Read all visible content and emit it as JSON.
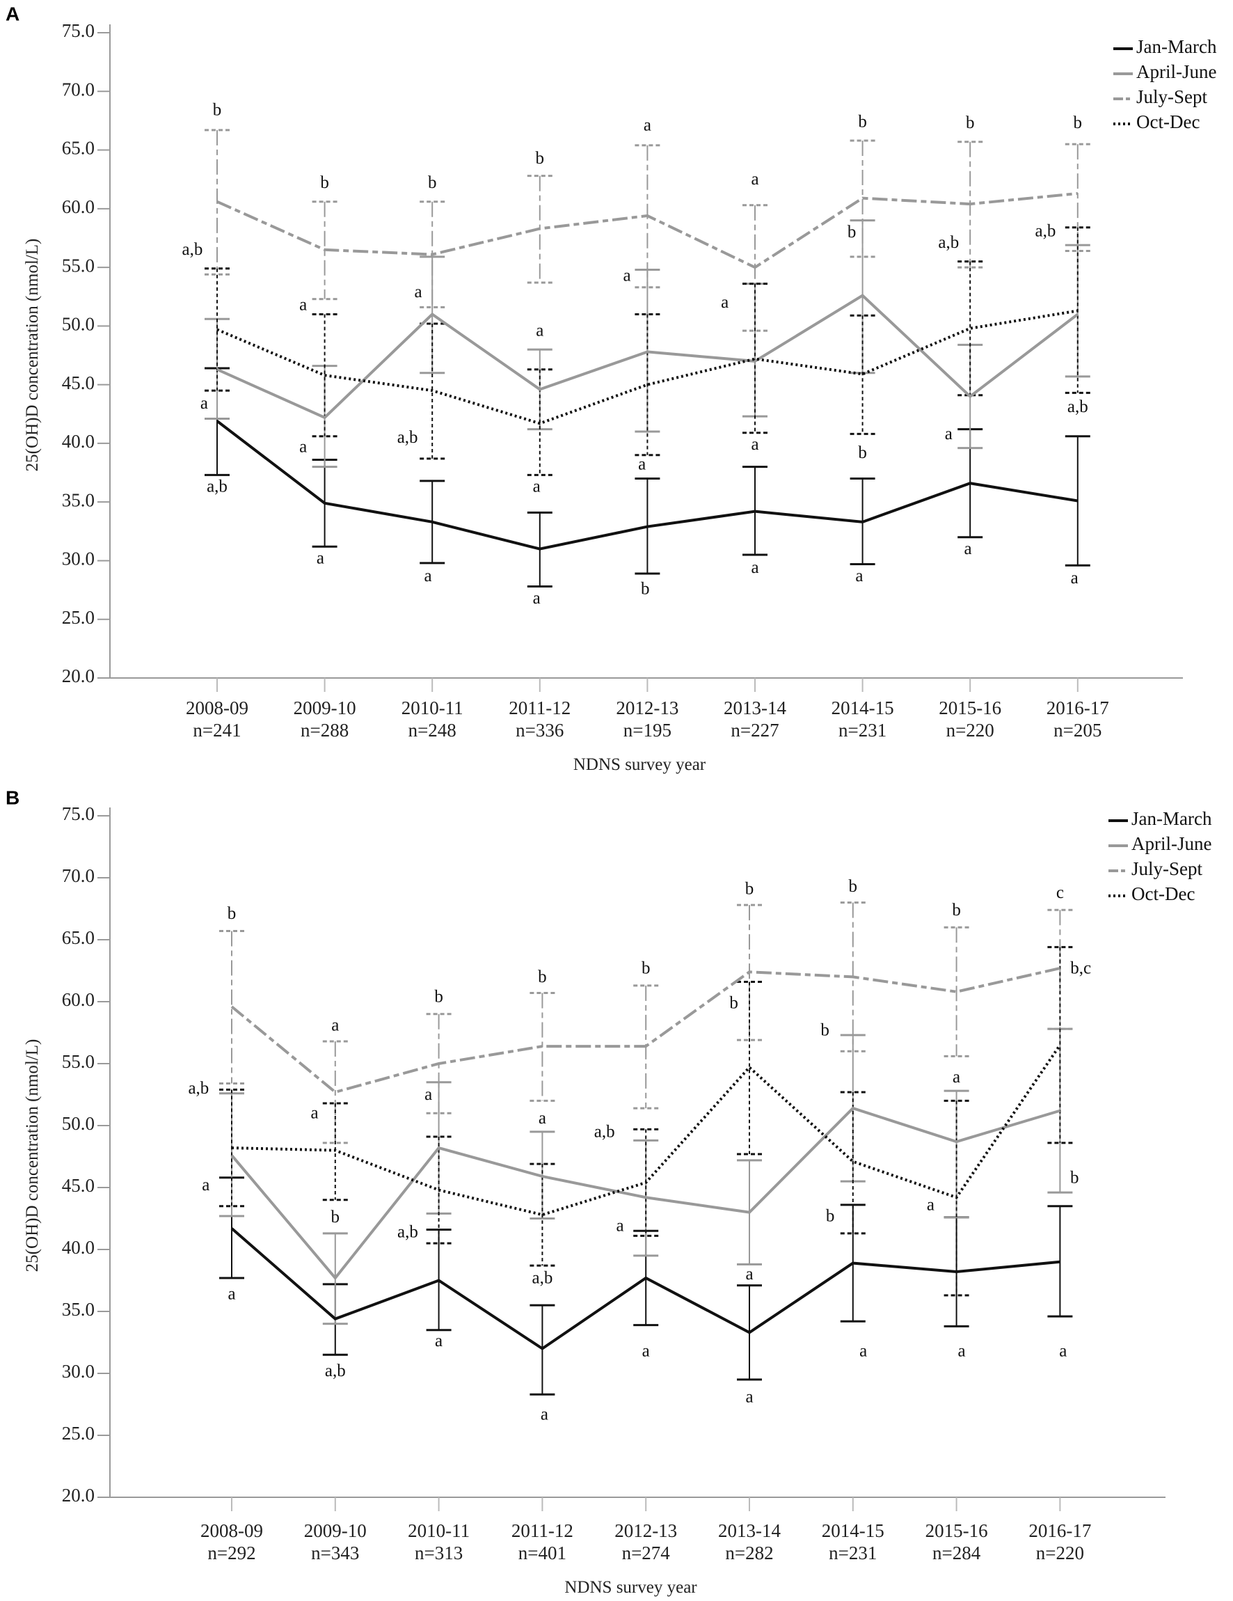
{
  "chart_data": [
    {
      "panel_label": "A",
      "type": "line",
      "xlabel": "NDNS survey year",
      "ylabel": "25(OH)D concentration (nmol/L)",
      "ylim": [
        20,
        75
      ],
      "yticks": [
        "20.0",
        "25.0",
        "30.0",
        "35.0",
        "40.0",
        "45.0",
        "50.0",
        "55.0",
        "60.0",
        "65.0",
        "70.0",
        "75.0"
      ],
      "categories": [
        "2008-09",
        "2009-10",
        "2010-11",
        "2011-12",
        "2012-13",
        "2013-14",
        "2014-15",
        "2015-16",
        "2016-17"
      ],
      "n_labels": [
        "n=241",
        "n=288",
        "n=248",
        "n=336",
        "n=195",
        "n=227",
        "n=231",
        "n=220",
        "n=205"
      ],
      "legend_position": "top-right",
      "series": [
        {
          "name": "Jan-March",
          "color": "#111111",
          "style": "solid",
          "mean": [
            41.9,
            34.9,
            33.3,
            31.0,
            32.9,
            34.2,
            33.3,
            36.6,
            35.1
          ],
          "lower": [
            37.3,
            31.2,
            29.8,
            27.8,
            28.9,
            30.5,
            29.7,
            32.0,
            29.6
          ],
          "upper": [
            46.4,
            38.6,
            36.8,
            34.1,
            37.0,
            38.0,
            37.0,
            41.2,
            40.6
          ]
        },
        {
          "name": "April-June",
          "color": "#999999",
          "style": "solid",
          "mean": [
            46.3,
            42.2,
            51.0,
            44.6,
            47.8,
            47.0,
            52.6,
            44.0,
            51.0
          ],
          "lower": [
            42.1,
            38.0,
            46.0,
            41.2,
            41.0,
            42.3,
            46.0,
            39.6,
            45.7
          ],
          "upper": [
            50.6,
            46.6,
            55.9,
            48.0,
            54.8,
            53.6,
            59.0,
            48.4,
            56.9
          ]
        },
        {
          "name": "July-Sept",
          "color": "#999999",
          "style": "dashdot",
          "mean": [
            60.6,
            56.5,
            56.1,
            58.3,
            59.4,
            55.0,
            60.9,
            60.4,
            61.3
          ],
          "lower": [
            54.4,
            52.3,
            51.6,
            53.7,
            53.3,
            49.6,
            55.9,
            55.0,
            56.4
          ],
          "upper": [
            66.7,
            60.6,
            60.6,
            62.8,
            65.4,
            60.3,
            65.8,
            65.7,
            65.5
          ]
        },
        {
          "name": "Oct-Dec",
          "color": "#111111",
          "style": "dotted",
          "mean": [
            49.7,
            45.8,
            44.5,
            41.7,
            45.0,
            47.2,
            45.9,
            49.8,
            51.3
          ],
          "lower": [
            44.5,
            40.6,
            38.7,
            37.3,
            39.0,
            40.9,
            40.8,
            44.1,
            44.3
          ],
          "upper": [
            54.9,
            51.0,
            50.2,
            46.3,
            51.0,
            53.6,
            50.9,
            55.5,
            58.4
          ]
        }
      ],
      "annotations": [
        {
          "text": "b",
          "x": 0,
          "y": 68.3
        },
        {
          "text": "a,b",
          "x": -0.23,
          "y": 56.4
        },
        {
          "text": "a",
          "x": -0.12,
          "y": 43.3
        },
        {
          "text": "a,b",
          "x": 0,
          "y": 36.2
        },
        {
          "text": "b",
          "x": 1,
          "y": 62.1
        },
        {
          "text": "a",
          "x": 0.8,
          "y": 51.7
        },
        {
          "text": "a",
          "x": 0.8,
          "y": 39.6
        },
        {
          "text": "a",
          "x": 0.96,
          "y": 30.1
        },
        {
          "text": "b",
          "x": 2,
          "y": 62.1
        },
        {
          "text": "a",
          "x": 1.87,
          "y": 52.8
        },
        {
          "text": "a,b",
          "x": 1.77,
          "y": 40.4
        },
        {
          "text": "a",
          "x": 1.96,
          "y": 28.6
        },
        {
          "text": "b",
          "x": 3,
          "y": 64.2
        },
        {
          "text": "a",
          "x": 3,
          "y": 49.5
        },
        {
          "text": "a",
          "x": 2.97,
          "y": 36.2
        },
        {
          "text": "a",
          "x": 2.97,
          "y": 26.7
        },
        {
          "text": "a",
          "x": 4,
          "y": 67.0
        },
        {
          "text": "a",
          "x": 3.81,
          "y": 54.2
        },
        {
          "text": "a",
          "x": 3.95,
          "y": 38.1
        },
        {
          "text": "b",
          "x": 3.98,
          "y": 27.5
        },
        {
          "text": "a",
          "x": 5,
          "y": 62.4
        },
        {
          "text": "a",
          "x": 4.72,
          "y": 51.9
        },
        {
          "text": "a",
          "x": 5,
          "y": 39.8
        },
        {
          "text": "a",
          "x": 5,
          "y": 29.3
        },
        {
          "text": "b",
          "x": 6,
          "y": 67.3
        },
        {
          "text": "b",
          "x": 5.9,
          "y": 57.9
        },
        {
          "text": "b",
          "x": 6,
          "y": 39.1
        },
        {
          "text": "a",
          "x": 5.97,
          "y": 28.6
        },
        {
          "text": "b",
          "x": 7,
          "y": 67.2
        },
        {
          "text": "a,b",
          "x": 6.8,
          "y": 57.0
        },
        {
          "text": "a",
          "x": 6.8,
          "y": 40.7
        },
        {
          "text": "a",
          "x": 6.98,
          "y": 30.9
        },
        {
          "text": "b",
          "x": 8,
          "y": 67.2
        },
        {
          "text": "a,b",
          "x": 7.7,
          "y": 58.0
        },
        {
          "text": "a,b",
          "x": 8,
          "y": 43.0
        },
        {
          "text": "a",
          "x": 7.97,
          "y": 28.4
        }
      ]
    },
    {
      "panel_label": "B",
      "type": "line",
      "xlabel": "NDNS survey year",
      "ylabel": "25(OH)D concentration (nmol/L)",
      "ylim": [
        20,
        75
      ],
      "yticks": [
        "20.0",
        "25.0",
        "30.0",
        "35.0",
        "40.0",
        "45.0",
        "50.0",
        "55.0",
        "60.0",
        "65.0",
        "70.0",
        "75.0"
      ],
      "categories": [
        "2008-09",
        "2009-10",
        "2010-11",
        "2011-12",
        "2012-13",
        "2013-14",
        "2014-15",
        "2015-16",
        "2016-17"
      ],
      "n_labels": [
        "n=292",
        "n=343",
        "n=313",
        "n=401",
        "n=274",
        "n=282",
        "n=231",
        "n=284",
        "n=220"
      ],
      "legend_position": "top-right",
      "series": [
        {
          "name": "Jan-March",
          "color": "#111111",
          "style": "solid",
          "mean": [
            41.7,
            34.4,
            37.5,
            32.0,
            37.7,
            33.3,
            38.9,
            38.2,
            39.0
          ],
          "lower": [
            37.7,
            31.5,
            33.5,
            28.3,
            33.9,
            29.5,
            34.2,
            33.8,
            34.6
          ],
          "upper": [
            45.8,
            37.2,
            41.6,
            35.5,
            41.5,
            37.1,
            43.6,
            42.6,
            43.5
          ]
        },
        {
          "name": "April-June",
          "color": "#999999",
          "style": "solid",
          "mean": [
            47.6,
            37.7,
            48.2,
            45.9,
            44.2,
            43.0,
            51.4,
            48.7,
            51.2
          ],
          "lower": [
            42.7,
            34.0,
            42.9,
            42.5,
            39.5,
            38.8,
            45.5,
            42.6,
            44.6
          ],
          "upper": [
            52.6,
            41.3,
            53.5,
            49.5,
            48.8,
            47.2,
            57.3,
            52.8,
            57.8
          ]
        },
        {
          "name": "July-Sept",
          "color": "#999999",
          "style": "dashdot",
          "mean": [
            59.6,
            52.7,
            55.0,
            56.4,
            56.4,
            62.4,
            62.0,
            60.8,
            62.7
          ],
          "lower": [
            53.4,
            48.6,
            51.0,
            52.0,
            51.4,
            56.9,
            56.0,
            55.6,
            57.8
          ],
          "upper": [
            65.7,
            56.8,
            59.0,
            60.7,
            61.3,
            67.8,
            68.0,
            66.0,
            67.4
          ]
        },
        {
          "name": "Oct-Dec",
          "color": "#111111",
          "style": "dotted",
          "mean": [
            48.2,
            48.0,
            44.8,
            42.8,
            45.4,
            54.7,
            47.1,
            44.2,
            56.5
          ],
          "lower": [
            43.5,
            44.0,
            40.5,
            38.7,
            41.1,
            47.7,
            41.3,
            36.3,
            48.6
          ],
          "upper": [
            52.9,
            51.8,
            49.1,
            46.9,
            49.7,
            61.6,
            52.7,
            52.0,
            64.4
          ]
        }
      ],
      "annotations": [
        {
          "text": "b",
          "x": 0,
          "y": 67.0
        },
        {
          "text": "a,b",
          "x": -0.32,
          "y": 52.9
        },
        {
          "text": "a",
          "x": -0.25,
          "y": 45.1
        },
        {
          "text": "a",
          "x": 0,
          "y": 36.3
        },
        {
          "text": "a",
          "x": 1,
          "y": 58.0
        },
        {
          "text": "a",
          "x": 0.8,
          "y": 50.9
        },
        {
          "text": "b",
          "x": 1,
          "y": 42.5
        },
        {
          "text": "a,b",
          "x": 1,
          "y": 30.1
        },
        {
          "text": "b",
          "x": 2,
          "y": 60.3
        },
        {
          "text": "a",
          "x": 1.9,
          "y": 52.4
        },
        {
          "text": "a,b",
          "x": 1.7,
          "y": 41.3
        },
        {
          "text": "a",
          "x": 2,
          "y": 32.5
        },
        {
          "text": "b",
          "x": 3,
          "y": 61.9
        },
        {
          "text": "a",
          "x": 3,
          "y": 50.5
        },
        {
          "text": "a,b",
          "x": 3,
          "y": 37.6
        },
        {
          "text": "a",
          "x": 3.02,
          "y": 26.6
        },
        {
          "text": "b",
          "x": 4,
          "y": 62.6
        },
        {
          "text": "a,b",
          "x": 3.6,
          "y": 49.4
        },
        {
          "text": "a",
          "x": 3.75,
          "y": 41.8
        },
        {
          "text": "a",
          "x": 4,
          "y": 31.7
        },
        {
          "text": "b",
          "x": 5,
          "y": 69.0
        },
        {
          "text": "b",
          "x": 4.85,
          "y": 59.8
        },
        {
          "text": "a",
          "x": 5,
          "y": 37.9
        },
        {
          "text": "a",
          "x": 5,
          "y": 28.0
        },
        {
          "text": "b",
          "x": 6,
          "y": 69.2
        },
        {
          "text": "b",
          "x": 5.73,
          "y": 57.6
        },
        {
          "text": "b",
          "x": 5.78,
          "y": 42.6
        },
        {
          "text": "a",
          "x": 6.1,
          "y": 31.7
        },
        {
          "text": "b",
          "x": 7,
          "y": 67.3
        },
        {
          "text": "a",
          "x": 7,
          "y": 53.8
        },
        {
          "text": "a",
          "x": 6.75,
          "y": 43.5
        },
        {
          "text": "a",
          "x": 7.05,
          "y": 31.7
        },
        {
          "text": "c",
          "x": 8,
          "y": 68.7
        },
        {
          "text": "b,c",
          "x": 8.2,
          "y": 62.6
        },
        {
          "text": "b",
          "x": 8.14,
          "y": 45.7
        },
        {
          "text": "a",
          "x": 8.03,
          "y": 31.7
        }
      ]
    }
  ]
}
